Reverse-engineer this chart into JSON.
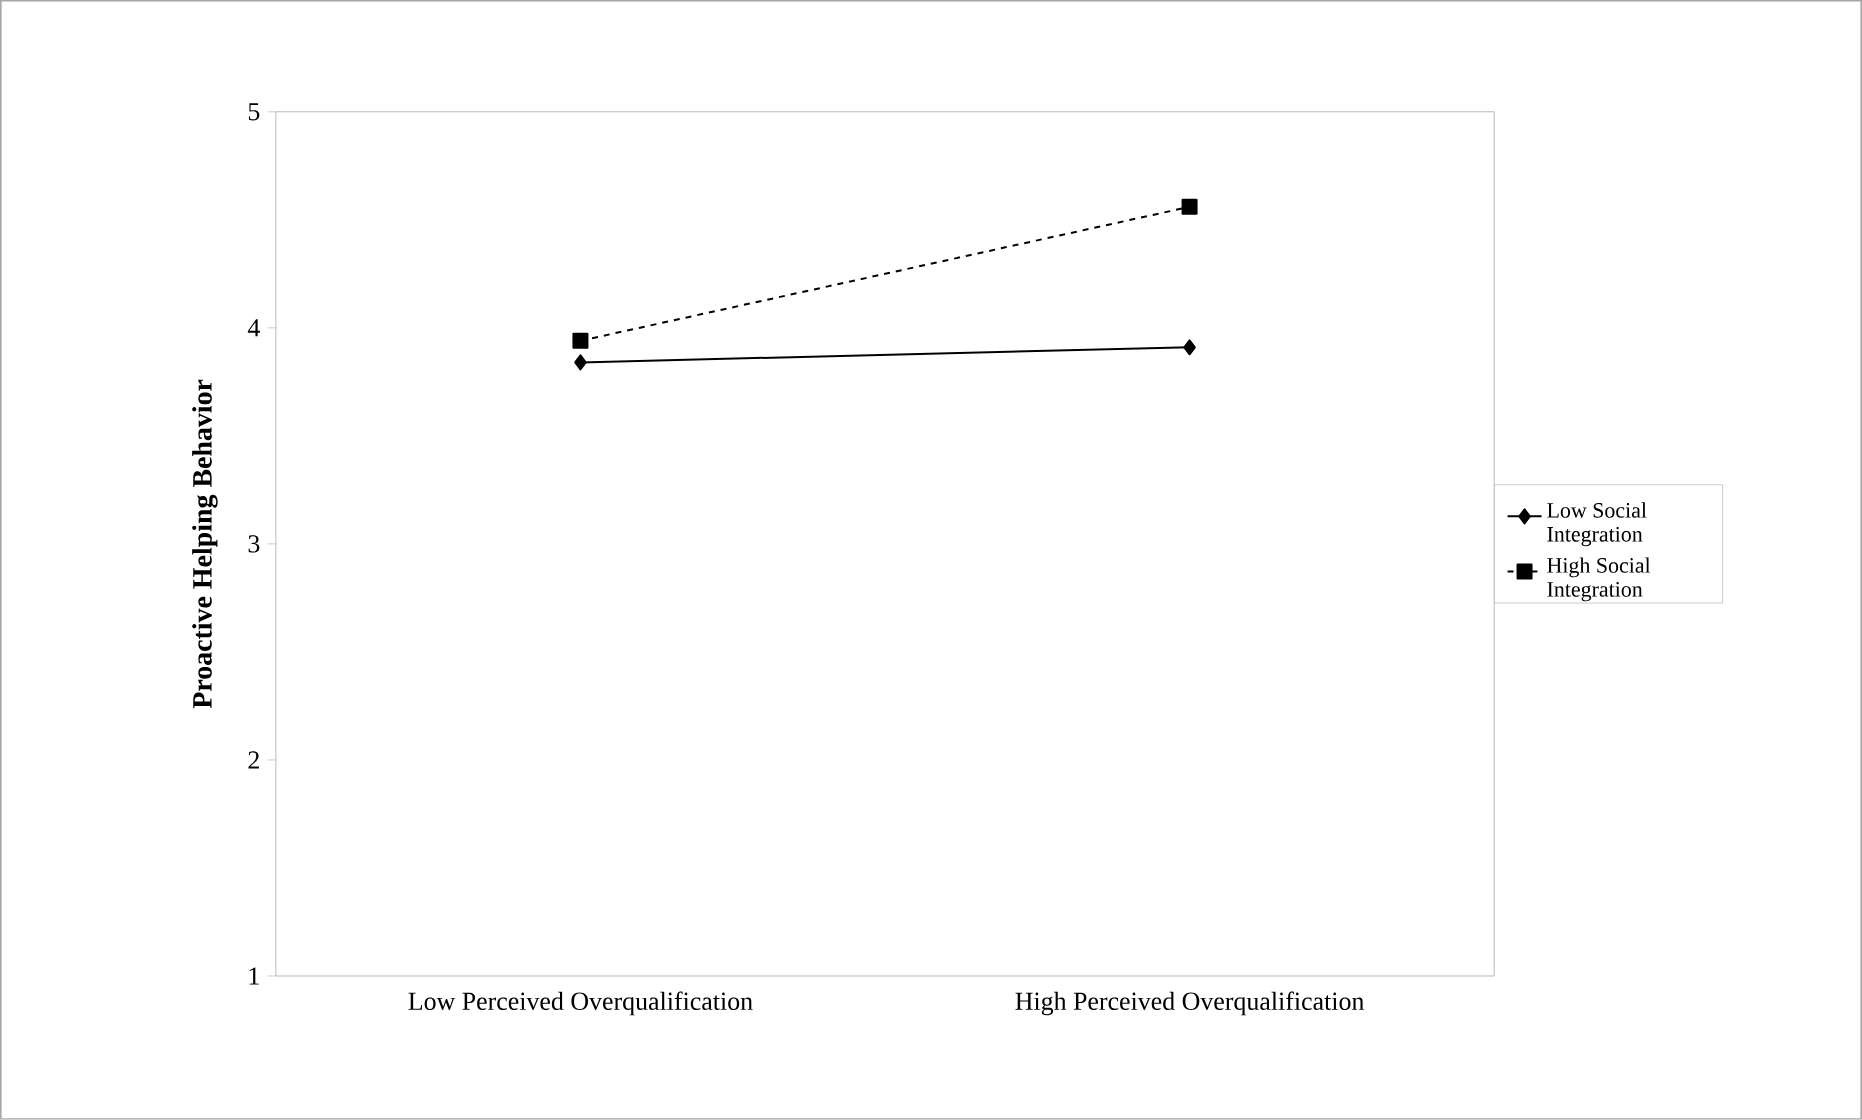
{
  "chart_data": {
    "type": "line",
    "ylabel": "Proactive Helping Behavior",
    "categories": [
      "Low Perceived Overqualification",
      "High Perceived Overqualification"
    ],
    "series": [
      {
        "name": "Low Social Integration",
        "color": "#000000",
        "values": [
          3.84,
          3.91
        ],
        "marker": "diamond",
        "line_style": "solid"
      },
      {
        "name": "High Social Integration",
        "color": "#000000",
        "values": [
          3.94,
          4.56
        ],
        "marker": "square",
        "line_style": "dashed"
      }
    ],
    "ylim": [
      1,
      5
    ],
    "yticks": [
      1,
      2,
      3,
      4,
      5
    ],
    "grid": false,
    "legend": "right"
  }
}
